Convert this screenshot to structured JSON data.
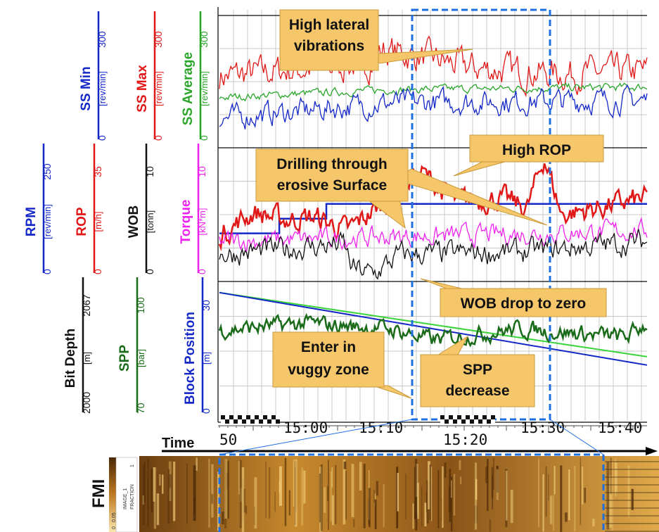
{
  "chart_data": {
    "type": "line",
    "title": "",
    "time_axis": {
      "label": "Time",
      "ticks": [
        "50",
        "15:00",
        "15:10",
        "15:20",
        "15:30",
        "15:40"
      ]
    },
    "tracks": [
      {
        "id": "vibration",
        "scales": [
          {
            "name": "SS Min",
            "unit": "[rev/min]",
            "min": "0",
            "max": "300",
            "color": "#1428c8"
          },
          {
            "name": "SS Max",
            "unit": "[rev/min]",
            "min": "0",
            "max": "300",
            "color": "#e01818"
          },
          {
            "name": "SS Average",
            "unit": "[rev/min]",
            "min": "0",
            "max": "300",
            "color": "#2aa52a"
          }
        ],
        "series": [
          {
            "name": "SS Max",
            "color": "#e01818",
            "level": 0.58,
            "amplitude": 0.08,
            "trend": [
              [
                0.0,
                0.54
              ],
              [
                0.35,
                0.64
              ],
              [
                0.38,
                0.74
              ],
              [
                0.45,
                0.7
              ],
              [
                0.6,
                0.6
              ],
              [
                0.8,
                0.56
              ],
              [
                1.0,
                0.58
              ]
            ]
          },
          {
            "name": "SS Average",
            "color": "#2aa52a",
            "level": 0.43,
            "amplitude": 0.02,
            "trend": [
              [
                0.0,
                0.38
              ],
              [
                0.4,
                0.44
              ],
              [
                1.0,
                0.46
              ]
            ]
          },
          {
            "name": "SS Min",
            "color": "#1428c8",
            "level": 0.3,
            "amplitude": 0.06,
            "trend": [
              [
                0.0,
                0.22
              ],
              [
                0.4,
                0.34
              ],
              [
                1.0,
                0.36
              ]
            ]
          }
        ]
      },
      {
        "id": "drilling",
        "scales": [
          {
            "name": "RPM",
            "unit": "[rev/min]",
            "min": "0",
            "max": "250",
            "color": "#1428c8"
          },
          {
            "name": "ROP",
            "unit": "[m/h]",
            "min": "0",
            "max": "35",
            "color": "#e01818"
          },
          {
            "name": "WOB",
            "unit": "[tonn]",
            "min": "0",
            "max": "10",
            "color": "#111111"
          },
          {
            "name": "Torque",
            "unit": "[kN*m]",
            "min": "0",
            "max": "10",
            "color": "#ee22ee"
          }
        ],
        "series": [
          {
            "name": "RPM",
            "color": "#1428c8",
            "steps": [
              [
                0.0,
                0.36
              ],
              [
                0.13,
                0.36
              ],
              [
                0.14,
                0.47
              ],
              [
                0.24,
                0.47
              ],
              [
                0.25,
                0.58
              ],
              [
                1.0,
                0.58
              ]
            ]
          },
          {
            "name": "ROP",
            "color": "#e01818",
            "level": 0.45,
            "amplitude": 0.06,
            "trend": [
              [
                0.0,
                0.35
              ],
              [
                0.08,
                0.52
              ],
              [
                0.15,
                0.46
              ],
              [
                0.22,
                0.48
              ],
              [
                0.3,
                0.38
              ],
              [
                0.38,
                0.58
              ],
              [
                0.47,
                0.82
              ],
              [
                0.55,
                0.6
              ],
              [
                0.66,
                0.62
              ],
              [
                0.72,
                0.55
              ],
              [
                0.76,
                0.93
              ],
              [
                0.8,
                0.5
              ],
              [
                1.0,
                0.62
              ]
            ]
          },
          {
            "name": "Torque",
            "color": "#ee22ee",
            "level": 0.34,
            "amplitude": 0.05,
            "trend": [
              [
                0.0,
                0.3
              ],
              [
                1.0,
                0.38
              ]
            ]
          },
          {
            "name": "WOB",
            "color": "#111111",
            "level": 0.22,
            "amplitude": 0.06,
            "trend": [
              [
                0.0,
                0.2
              ],
              [
                0.29,
                0.28
              ],
              [
                0.31,
                0.1
              ],
              [
                0.36,
                0.05
              ],
              [
                0.42,
                0.2
              ],
              [
                0.7,
                0.22
              ],
              [
                1.0,
                0.3
              ]
            ]
          }
        ]
      },
      {
        "id": "depth",
        "scales": [
          {
            "name": "Bit Depth",
            "unit": "[m]",
            "min": "2000",
            "max": "2067",
            "color": "#111111"
          },
          {
            "name": "SPP",
            "unit": "[bar]",
            "min": "70",
            "max": "100",
            "color": "#1a6b1a"
          },
          {
            "name": "Block Position",
            "unit": "[m]",
            "min": "0",
            "max": "30",
            "color": "#1428c8"
          }
        ],
        "series": [
          {
            "name": "Bit Depth",
            "color": "#3ad43a",
            "line": [
              [
                0.0,
                0.92
              ],
              [
                1.0,
                0.46
              ]
            ]
          },
          {
            "name": "Block Position",
            "color": "#1428c8",
            "line": [
              [
                0.0,
                0.92
              ],
              [
                1.0,
                0.4
              ]
            ]
          },
          {
            "name": "SPP",
            "color": "#1a6b1a",
            "level": 0.66,
            "amplitude": 0.04,
            "trend": [
              [
                0.0,
                0.65
              ],
              [
                0.2,
                0.7
              ],
              [
                0.4,
                0.66
              ],
              [
                0.5,
                0.58
              ],
              [
                0.7,
                0.66
              ],
              [
                0.95,
                0.6
              ],
              [
                1.0,
                0.7
              ]
            ]
          }
        ]
      }
    ],
    "annotations": [
      {
        "text_lines": [
          "High lateral",
          "vibrations"
        ]
      },
      {
        "text_lines": [
          "High ROP"
        ]
      },
      {
        "text_lines": [
          "Drilling through",
          "erosive Surface"
        ]
      },
      {
        "text_lines": [
          "WOB drop to zero"
        ]
      },
      {
        "text_lines": [
          "Enter in",
          "vuggy zone"
        ]
      },
      {
        "text_lines": [
          "SPP",
          "decrease"
        ]
      }
    ],
    "image_log": {
      "label": "FMI",
      "scale_labels": [
        "0",
        "0.05",
        "IMAGE_1",
        "FRACTION",
        "1"
      ]
    }
  },
  "colors": {
    "callout_fill": "#f5c76a",
    "callout_edge": "#c99a38",
    "highlight_box": "#1f6fe0",
    "grid": "#c8c8c8"
  }
}
